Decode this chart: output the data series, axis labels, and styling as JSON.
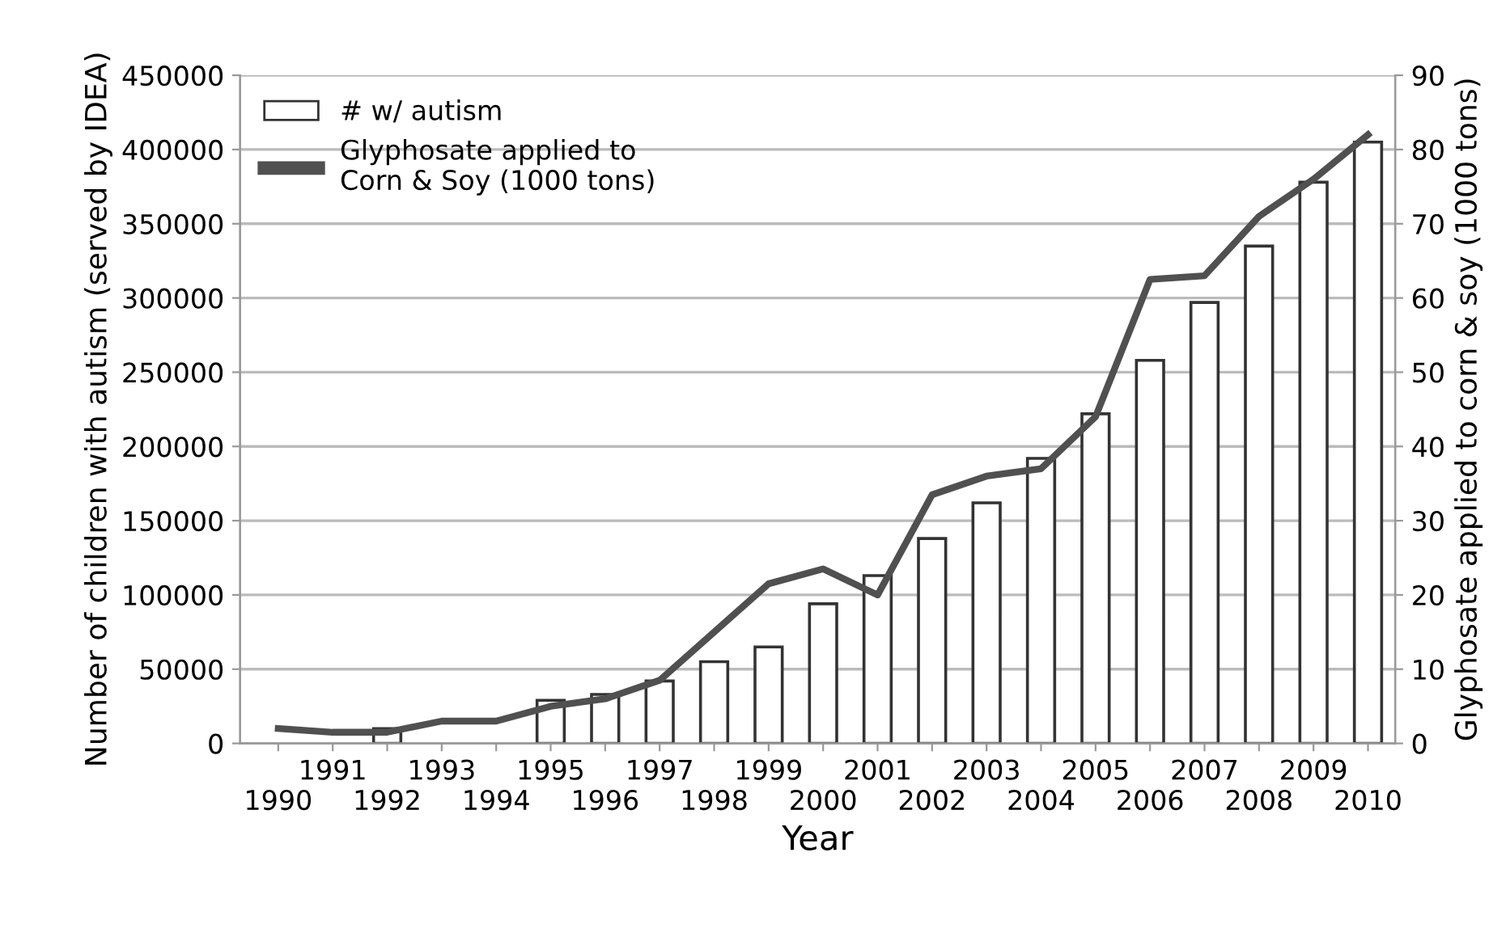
{
  "chart_data": {
    "type": "bar",
    "categories": [
      "1990",
      "1991",
      "1992",
      "1993",
      "1994",
      "1995",
      "1996",
      "1997",
      "1998",
      "1999",
      "2000",
      "2001",
      "2002",
      "2003",
      "2004",
      "2005",
      "2006",
      "2007",
      "2008",
      "2009",
      "2010"
    ],
    "series": [
      {
        "name": "# w/ autism",
        "color": "#ffffff",
        "values": [
          null,
          null,
          10000,
          null,
          null,
          29000,
          33000,
          42000,
          55000,
          65000,
          94000,
          113000,
          138000,
          162000,
          192000,
          222000,
          258000,
          297000,
          335000,
          378000,
          405000
        ]
      },
      {
        "name": "Glyphosate applied to\nCorn & Soy (1000 tons)",
        "type": "line",
        "axis": "y2",
        "color": "#505050",
        "values": [
          2,
          1.5,
          1.5,
          3,
          3,
          5,
          6,
          8.5,
          15,
          21.5,
          23.5,
          20,
          33.5,
          36,
          37,
          44,
          62.5,
          63,
          71,
          76,
          82
        ]
      }
    ],
    "xlabel": "Year",
    "ylabel": "Number of children with autism (served by IDEA)",
    "y2label": "Glyphosate applied to corn & soy (1000 tons)",
    "ylim": [
      0,
      450000
    ],
    "yticks": [
      0,
      50000,
      100000,
      150000,
      200000,
      250000,
      300000,
      350000,
      400000,
      450000
    ],
    "y2lim": [
      0,
      90
    ],
    "y2ticks": [
      0,
      10,
      20,
      30,
      40,
      50,
      60,
      70,
      80,
      90
    ],
    "grid": "y",
    "legend": "top left"
  }
}
